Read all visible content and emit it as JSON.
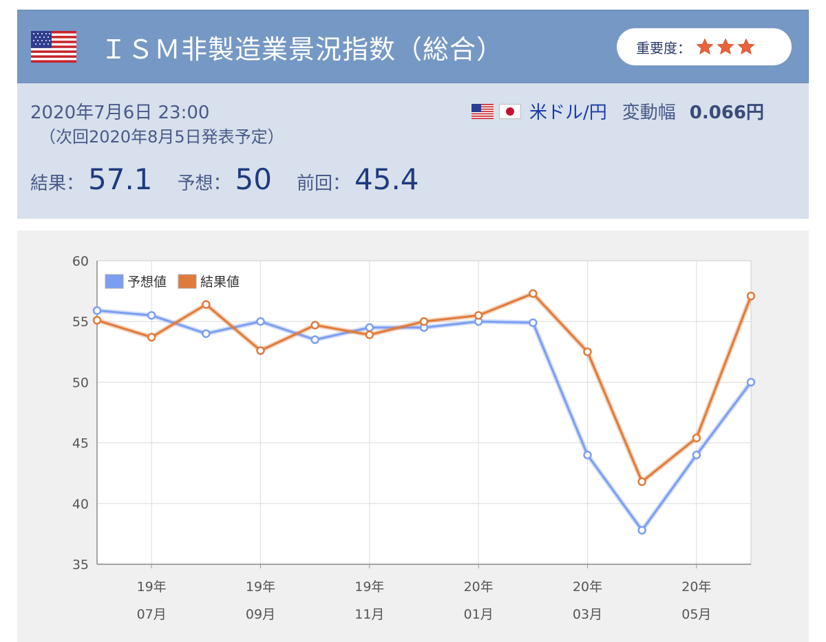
{
  "header": {
    "title": "ＩＳＭ非製造業景況指数（総合）",
    "importance_label": "重要度：",
    "star_count": 3,
    "flag_icon": "us-flag-icon"
  },
  "info": {
    "datetime": "2020年7月6日 23:00",
    "next_release": "（次回2020年8月5日発表予定）",
    "result_label": "結果：",
    "result_value": "57.1",
    "forecast_label": "予想：",
    "forecast_value": "50",
    "previous_label": "前回：",
    "previous_value": "45.4",
    "pair_link": "米ドル/円",
    "range_label": "変動幅",
    "range_value": "0.066円"
  },
  "colors": {
    "header_bg": "#7698c4",
    "info_bg": "#d7e0ec",
    "forecast_line": "#7c9ef0",
    "result_line": "#e07a3a"
  },
  "chart_data": {
    "type": "line",
    "ylim": [
      35,
      60
    ],
    "yticks": [
      35,
      40,
      45,
      50,
      55,
      60
    ],
    "x_tick_labels": [
      {
        "index": 1,
        "year": "19年",
        "month": "07月"
      },
      {
        "index": 3,
        "year": "19年",
        "month": "09月"
      },
      {
        "index": 5,
        "year": "19年",
        "month": "11月"
      },
      {
        "index": 7,
        "year": "20年",
        "month": "01月"
      },
      {
        "index": 9,
        "year": "20年",
        "month": "03月"
      },
      {
        "index": 11,
        "year": "20年",
        "month": "05月"
      }
    ],
    "legend_position": "top-left",
    "grid": true,
    "series": [
      {
        "name": "予想値",
        "color": "#7c9ef0",
        "values": [
          55.9,
          55.5,
          54.0,
          55.0,
          53.5,
          54.5,
          54.5,
          55.0,
          54.9,
          44.0,
          37.8,
          44.0,
          50.0
        ]
      },
      {
        "name": "結果値",
        "color": "#e07a3a",
        "values": [
          55.1,
          53.7,
          56.4,
          52.6,
          54.7,
          53.9,
          55.0,
          55.5,
          57.3,
          52.5,
          41.8,
          45.4,
          57.1
        ]
      }
    ]
  }
}
